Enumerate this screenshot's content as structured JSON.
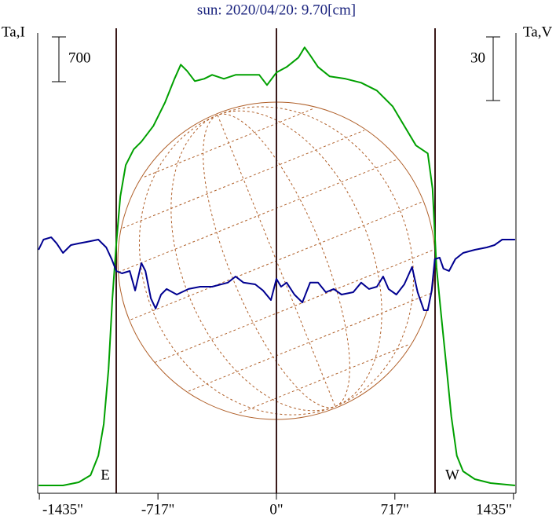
{
  "chart_data": {
    "type": "line",
    "title": "sun: 2020/04/20: 9.70[cm]",
    "ylabel": "Ta,I",
    "y2label": "Ta,V",
    "limb_labels": [
      "E",
      "W"
    ],
    "scale_bars": [
      {
        "value": 700,
        "label": "700",
        "axis": "y"
      },
      {
        "value": 30,
        "label": "30",
        "axis": "y2"
      }
    ],
    "xlim": [
      -1445,
      1450
    ],
    "xticks": [
      {
        "value": -1435,
        "label": "-1435\""
      },
      {
        "value": -717,
        "label": "-717\""
      },
      {
        "value": 0,
        "label": "0\""
      },
      {
        "value": 717,
        "label": "717\""
      },
      {
        "value": 1435,
        "label": "1435\""
      }
    ],
    "ylim": [
      -100,
      7100
    ],
    "y2lim": [
      -120,
      97
    ],
    "series": [
      {
        "name": "Ta,I",
        "color": "#00a000",
        "axis": "y",
        "x": [
          -1440,
          -1292,
          -1197,
          -1125,
          -1078,
          -1045,
          -1016,
          -993,
          -969,
          -945,
          -912,
          -864,
          -817,
          -745,
          -674,
          -617,
          -579,
          -541,
          -494,
          -437,
          -389,
          -318,
          -247,
          -176,
          -104,
          -57,
          0,
          62,
          133,
          171,
          204,
          252,
          323,
          418,
          513,
          608,
          703,
          774,
          845,
          916,
          945,
          969,
          997,
          1026,
          1059,
          1092,
          1130,
          1201,
          1296,
          1445
        ],
        "values": [
          23,
          23,
          72,
          182,
          489,
          981,
          1840,
          2945,
          3805,
          4542,
          5033,
          5279,
          5401,
          5647,
          6015,
          6384,
          6605,
          6507,
          6347,
          6384,
          6445,
          6384,
          6445,
          6445,
          6445,
          6286,
          6482,
          6568,
          6715,
          6875,
          6752,
          6568,
          6421,
          6384,
          6322,
          6200,
          5954,
          5647,
          5340,
          5217,
          4665,
          3437,
          2700,
          1963,
          1103,
          489,
          244,
          121,
          60,
          23
        ]
      },
      {
        "name": "Ta,V",
        "color": "#000090",
        "axis": "y2",
        "x": [
          -1440,
          -1410,
          -1363,
          -1330,
          -1292,
          -1244,
          -1197,
          -1149,
          -1078,
          -1030,
          -997,
          -969,
          -935,
          -888,
          -855,
          -817,
          -793,
          -760,
          -731,
          -698,
          -665,
          -603,
          -532,
          -461,
          -389,
          -294,
          -247,
          -199,
          -128,
          -81,
          -33,
          0,
          28,
          62,
          109,
          157,
          204,
          252,
          299,
          347,
          394,
          465,
          513,
          560,
          608,
          646,
          679,
          726,
          774,
          821,
          855,
          893,
          916,
          940,
          959,
          988,
          1011,
          1045,
          1083,
          1130,
          1201,
          1273,
          1320,
          1367,
          1445
        ],
        "values": [
          -5.2,
          -0.4,
          0.7,
          -2.2,
          -6.7,
          -3.0,
          -2.2,
          -1.5,
          -0.4,
          -4.1,
          -9.6,
          -15.2,
          -16.3,
          -15.2,
          -24.4,
          -11.5,
          -15.2,
          -28.1,
          -32.9,
          -26.3,
          -23.7,
          -26.3,
          -23.7,
          -22.6,
          -22.6,
          -20.7,
          -17.8,
          -20.7,
          -21.5,
          -24.4,
          -28.9,
          -18.9,
          -22.6,
          -20.7,
          -26.3,
          -30.0,
          -20.7,
          -20.7,
          -25.2,
          -23.7,
          -26.3,
          -25.2,
          -20.7,
          -23.7,
          -22.6,
          -17.8,
          -23.7,
          -26.3,
          -21.5,
          -13.3,
          -25.2,
          -33.7,
          -33.7,
          -24.4,
          -9.6,
          -8.9,
          -14.1,
          -15.2,
          -9.6,
          -6.7,
          -5.2,
          -4.1,
          -3.0,
          -0.4,
          -0.4
        ]
      }
    ]
  }
}
